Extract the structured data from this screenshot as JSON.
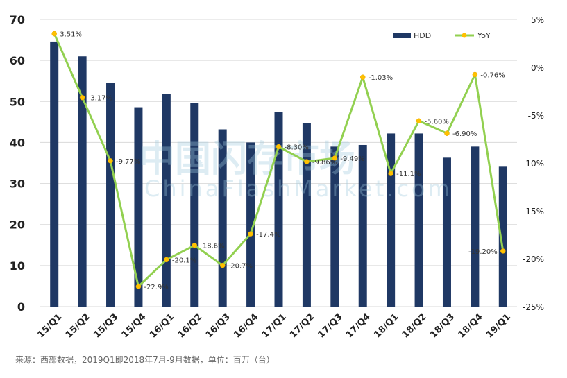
{
  "chart_data": {
    "type": "bar",
    "categories": [
      "15/Q1",
      "15/Q2",
      "15/Q3",
      "15/Q4",
      "16/Q1",
      "16/Q2",
      "16/Q3",
      "16/Q4",
      "17/Q1",
      "17/Q2",
      "17/Q3",
      "17/Q4",
      "18/Q1",
      "18/Q2",
      "18/Q3",
      "18/Q4",
      "19/Q1"
    ],
    "series": [
      {
        "name": "HDD",
        "type": "bar",
        "axis": "left",
        "values": [
          64.6,
          61.0,
          54.5,
          48.6,
          51.8,
          49.6,
          43.2,
          40.0,
          47.4,
          44.7,
          39.0,
          39.4,
          42.2,
          42.2,
          36.3,
          39.0,
          34.1
        ]
      },
      {
        "name": "YoY",
        "type": "line",
        "axis": "right",
        "values": [
          3.51,
          -3.17,
          -9.77,
          -22.9,
          -20.1,
          -18.6,
          -20.7,
          -17.4,
          -8.3,
          -9.86,
          -9.49,
          -1.03,
          -11.1,
          -5.6,
          -6.9,
          -0.76,
          -19.2
        ],
        "labels": [
          "3.51%",
          "-3.17%",
          "-9.77%",
          "-22.9%",
          "-20.1%",
          "-18.6%",
          "-20.7%",
          "-17.4%",
          "-8.30%",
          "-9.86%",
          "-9.49%",
          "-1.03%",
          "-11.1%",
          "-5.60%",
          "-6.90%",
          "-0.76%",
          "-19.20%"
        ]
      }
    ],
    "ylim": [
      0,
      70
    ],
    "yticks": [
      "0",
      "10",
      "20",
      "30",
      "40",
      "50",
      "60",
      "70"
    ],
    "y2lim": [
      -25,
      5
    ],
    "y2ticks": [
      "-25%",
      "-20%",
      "-15%",
      "-10%",
      "-5%",
      "0%",
      "5%"
    ],
    "legend": "top-right",
    "grid": true,
    "colors": {
      "bar": "#1f3864",
      "line": "#92d050",
      "marker": "#ffc000",
      "grid": "#d9d9d9"
    }
  },
  "watermark": {
    "cn": "中国闪存市场",
    "en": "ChinaFlashMarket.com"
  },
  "source": "来源：西部数据，2019Q1即2018年7月-9月数据，单位：百万（台）"
}
